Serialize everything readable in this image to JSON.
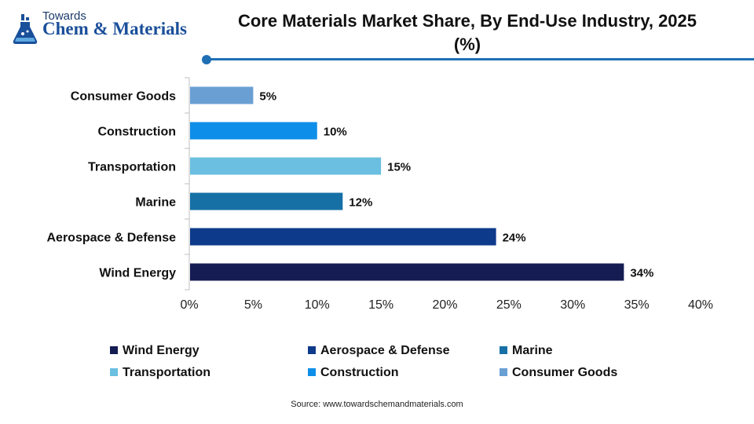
{
  "logo": {
    "line1": "Towards",
    "line2": "Chem & Materials"
  },
  "title": "Core Materials Market Share, By End-Use Industry, 2025 (%)",
  "source": "Source: www.towardschemandmaterials.com",
  "chart_data": {
    "type": "bar",
    "orientation": "horizontal",
    "title": "Core Materials Market Share, By End-Use Industry, 2025 (%)",
    "xlabel": "",
    "ylabel": "",
    "xlim": [
      0,
      40
    ],
    "x_ticks": [
      0,
      5,
      10,
      15,
      20,
      25,
      30,
      35,
      40
    ],
    "x_tick_labels": [
      "0%",
      "5%",
      "10%",
      "15%",
      "20%",
      "25%",
      "30%",
      "35%",
      "40%"
    ],
    "categories": [
      "Consumer Goods",
      "Construction",
      "Transportation",
      "Marine",
      "Aerospace & Defense",
      "Wind Energy"
    ],
    "values": [
      5,
      10,
      15,
      12,
      24,
      34
    ],
    "value_labels": [
      "5%",
      "10%",
      "15%",
      "12%",
      "24%",
      "34%"
    ],
    "colors": [
      "#6a9fd4",
      "#0d8ee8",
      "#6bbfe0",
      "#1670a6",
      "#0d3a8a",
      "#141c52"
    ],
    "grid": false,
    "legend_position": "bottom",
    "legend": [
      {
        "label": "Wind Energy",
        "color": "#141c52"
      },
      {
        "label": "Aerospace & Defense",
        "color": "#0d3a8a"
      },
      {
        "label": "Marine",
        "color": "#1670a6"
      },
      {
        "label": "Transportation",
        "color": "#6bbfe0"
      },
      {
        "label": "Construction",
        "color": "#0d8ee8"
      },
      {
        "label": "Consumer Goods",
        "color": "#6a9fd4"
      }
    ]
  }
}
